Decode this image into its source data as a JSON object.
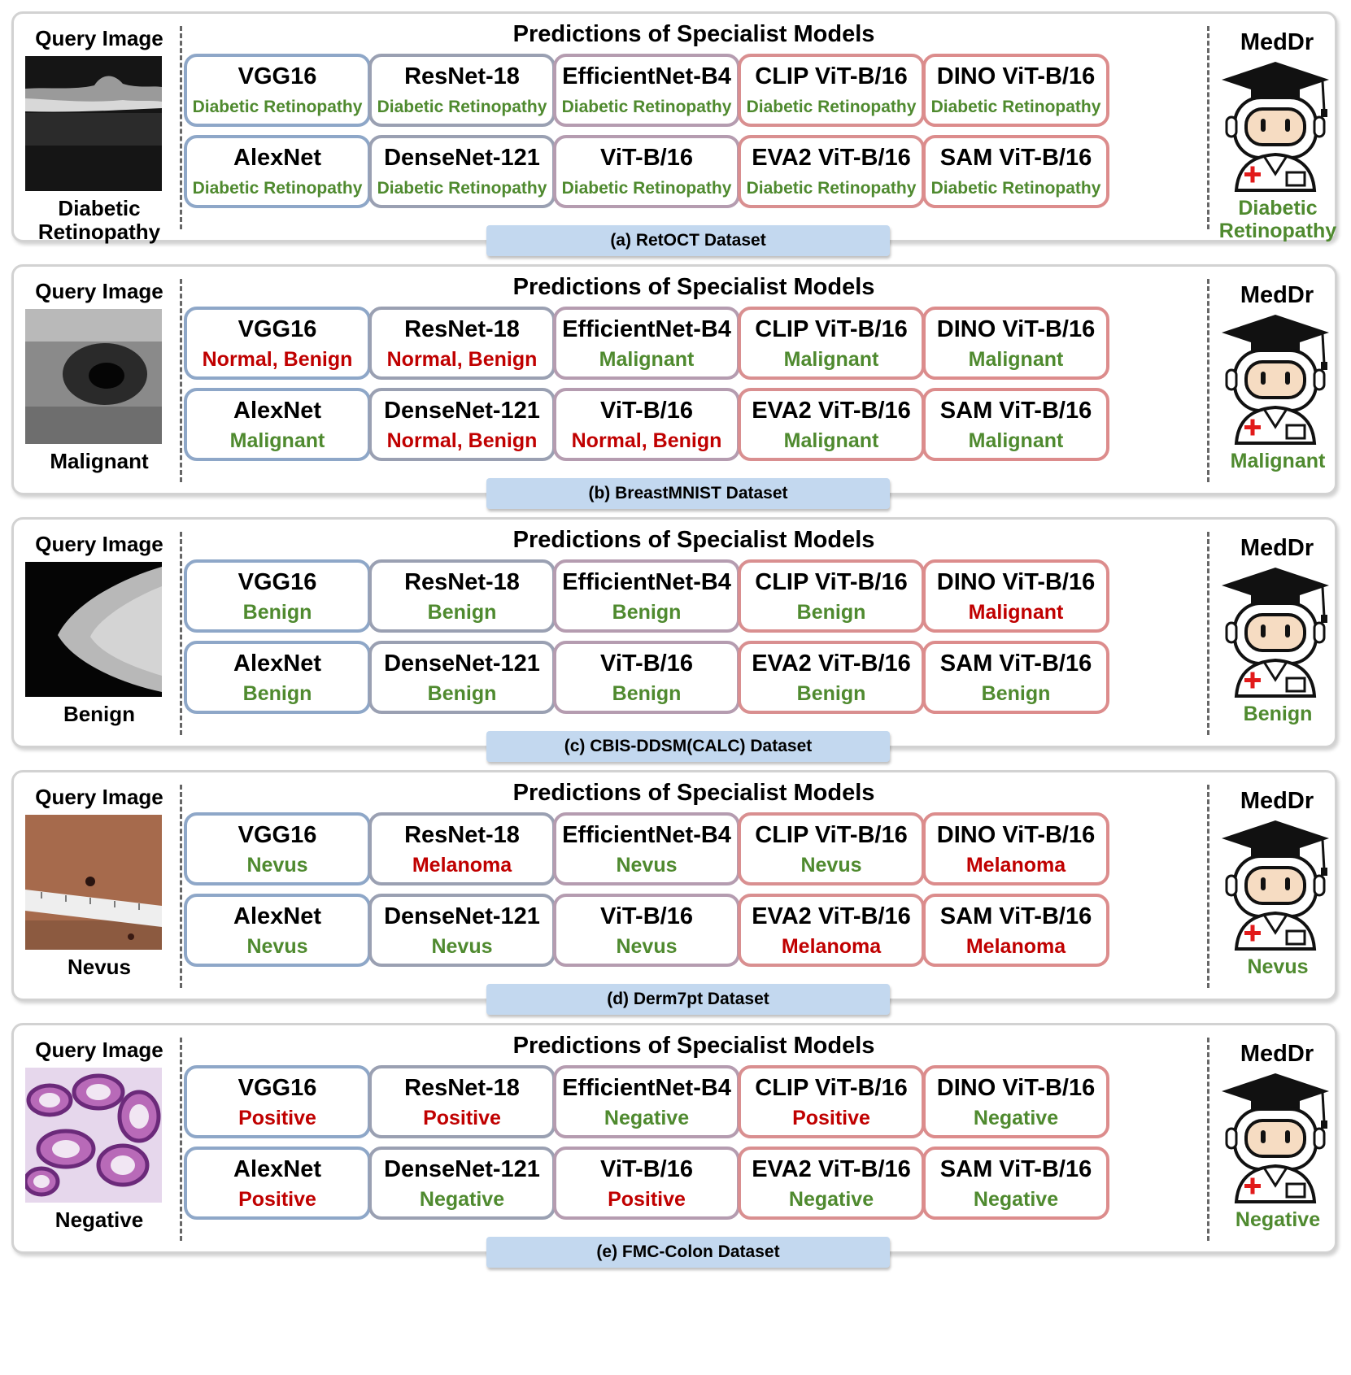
{
  "colors": {
    "correct": "#4f8a2f",
    "incorrect": "#c00000"
  },
  "labels": {
    "query_title": "Query Image",
    "section_title": "Predictions of Specialist Models",
    "meddr_title": "MedDr"
  },
  "panels": [
    {
      "caption": "(a) RetOCT Dataset",
      "image": "oct-retina-scan",
      "ground_truth": "Diabetic Retinopathy",
      "meddr": {
        "text": "Diabetic Retinopathy",
        "correct": true
      },
      "models": [
        {
          "name": "VGG16",
          "pred": "Diabetic Retinopathy",
          "correct": true
        },
        {
          "name": "ResNet-18",
          "pred": "Diabetic Retinopathy",
          "correct": true
        },
        {
          "name": "EfficientNet-B4",
          "pred": "Diabetic Retinopathy",
          "correct": true
        },
        {
          "name": "CLIP ViT-B/16",
          "pred": "Diabetic Retinopathy",
          "correct": true
        },
        {
          "name": "DINO ViT-B/16",
          "pred": "Diabetic Retinopathy",
          "correct": true
        },
        {
          "name": "AlexNet",
          "pred": "Diabetic Retinopathy",
          "correct": true
        },
        {
          "name": "DenseNet-121",
          "pred": "Diabetic Retinopathy",
          "correct": true
        },
        {
          "name": "ViT-B/16",
          "pred": "Diabetic Retinopathy",
          "correct": true
        },
        {
          "name": "EVA2 ViT-B/16",
          "pred": "Diabetic Retinopathy",
          "correct": true
        },
        {
          "name": "SAM ViT-B/16",
          "pred": "Diabetic Retinopathy",
          "correct": true
        }
      ]
    },
    {
      "caption": "(b) BreastMNIST Dataset",
      "image": "breast-ultrasound",
      "ground_truth": "Malignant",
      "meddr": {
        "text": "Malignant",
        "correct": true
      },
      "models": [
        {
          "name": "VGG16",
          "pred": "Normal, Benign",
          "correct": false
        },
        {
          "name": "ResNet-18",
          "pred": "Normal, Benign",
          "correct": false
        },
        {
          "name": "EfficientNet-B4",
          "pred": "Malignant",
          "correct": true
        },
        {
          "name": "CLIP ViT-B/16",
          "pred": "Malignant",
          "correct": true
        },
        {
          "name": "DINO ViT-B/16",
          "pred": "Malignant",
          "correct": true
        },
        {
          "name": "AlexNet",
          "pred": "Malignant",
          "correct": true
        },
        {
          "name": "DenseNet-121",
          "pred": "Normal, Benign",
          "correct": false
        },
        {
          "name": "ViT-B/16",
          "pred": "Normal, Benign",
          "correct": false
        },
        {
          "name": "EVA2 ViT-B/16",
          "pred": "Malignant",
          "correct": true
        },
        {
          "name": "SAM ViT-B/16",
          "pred": "Malignant",
          "correct": true
        }
      ]
    },
    {
      "caption": "(c) CBIS-DDSM(CALC) Dataset",
      "image": "mammogram",
      "ground_truth": "Benign",
      "meddr": {
        "text": "Benign",
        "correct": true
      },
      "models": [
        {
          "name": "VGG16",
          "pred": "Benign",
          "correct": true
        },
        {
          "name": "ResNet-18",
          "pred": "Benign",
          "correct": true
        },
        {
          "name": "EfficientNet-B4",
          "pred": "Benign",
          "correct": true
        },
        {
          "name": "CLIP ViT-B/16",
          "pred": "Benign",
          "correct": true
        },
        {
          "name": "DINO ViT-B/16",
          "pred": "Malignant",
          "correct": false
        },
        {
          "name": "AlexNet",
          "pred": "Benign",
          "correct": true
        },
        {
          "name": "DenseNet-121",
          "pred": "Benign",
          "correct": true
        },
        {
          "name": "ViT-B/16",
          "pred": "Benign",
          "correct": true
        },
        {
          "name": "EVA2 ViT-B/16",
          "pred": "Benign",
          "correct": true
        },
        {
          "name": "SAM ViT-B/16",
          "pred": "Benign",
          "correct": true
        }
      ]
    },
    {
      "caption": "(d) Derm7pt Dataset",
      "image": "skin-lesion-with-ruler",
      "ground_truth": "Nevus",
      "meddr": {
        "text": "Nevus",
        "correct": true
      },
      "models": [
        {
          "name": "VGG16",
          "pred": "Nevus",
          "correct": true
        },
        {
          "name": "ResNet-18",
          "pred": "Melanoma",
          "correct": false
        },
        {
          "name": "EfficientNet-B4",
          "pred": "Nevus",
          "correct": true
        },
        {
          "name": "CLIP ViT-B/16",
          "pred": "Nevus",
          "correct": true
        },
        {
          "name": "DINO ViT-B/16",
          "pred": "Melanoma",
          "correct": false
        },
        {
          "name": "AlexNet",
          "pred": "Nevus",
          "correct": true
        },
        {
          "name": "DenseNet-121",
          "pred": "Nevus",
          "correct": true
        },
        {
          "name": "ViT-B/16",
          "pred": "Nevus",
          "correct": true
        },
        {
          "name": "EVA2 ViT-B/16",
          "pred": "Melanoma",
          "correct": false
        },
        {
          "name": "SAM ViT-B/16",
          "pred": "Melanoma",
          "correct": false
        }
      ]
    },
    {
      "caption": "(e) FMC-Colon Dataset",
      "image": "colon-histology",
      "ground_truth": "Negative",
      "meddr": {
        "text": "Negative",
        "correct": true
      },
      "models": [
        {
          "name": "VGG16",
          "pred": "Positive",
          "correct": false
        },
        {
          "name": "ResNet-18",
          "pred": "Positive",
          "correct": false
        },
        {
          "name": "EfficientNet-B4",
          "pred": "Negative",
          "correct": true
        },
        {
          "name": "CLIP ViT-B/16",
          "pred": "Positive",
          "correct": false
        },
        {
          "name": "DINO ViT-B/16",
          "pred": "Negative",
          "correct": true
        },
        {
          "name": "AlexNet",
          "pred": "Positive",
          "correct": false
        },
        {
          "name": "DenseNet-121",
          "pred": "Negative",
          "correct": true
        },
        {
          "name": "ViT-B/16",
          "pred": "Positive",
          "correct": false
        },
        {
          "name": "EVA2 ViT-B/16",
          "pred": "Negative",
          "correct": true
        },
        {
          "name": "SAM ViT-B/16",
          "pred": "Negative",
          "correct": true
        }
      ]
    }
  ]
}
